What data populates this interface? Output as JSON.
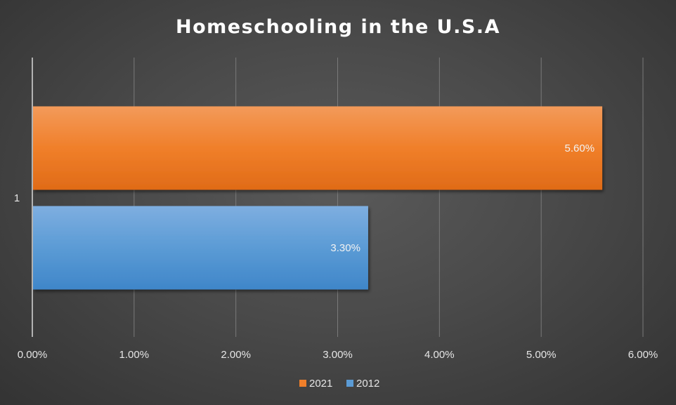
{
  "chart_data": {
    "type": "bar",
    "orientation": "horizontal",
    "title": "Homeschooling in the U.S.A",
    "categories": [
      "1"
    ],
    "series": [
      {
        "name": "2021",
        "values": [
          0.056
        ],
        "labels": [
          "5.60%"
        ],
        "color": "#f07f2a"
      },
      {
        "name": "2012",
        "values": [
          0.033
        ],
        "labels": [
          "3.30%"
        ],
        "color": "#5b9bd5"
      }
    ],
    "xlim": [
      0,
      0.06
    ],
    "xticks": [
      0,
      0.01,
      0.02,
      0.03,
      0.04,
      0.05,
      0.06
    ],
    "xtick_labels": [
      "0.00%",
      "1.00%",
      "2.00%",
      "3.00%",
      "4.00%",
      "5.00%",
      "6.00%"
    ],
    "grid": true,
    "legend": "bottom"
  }
}
